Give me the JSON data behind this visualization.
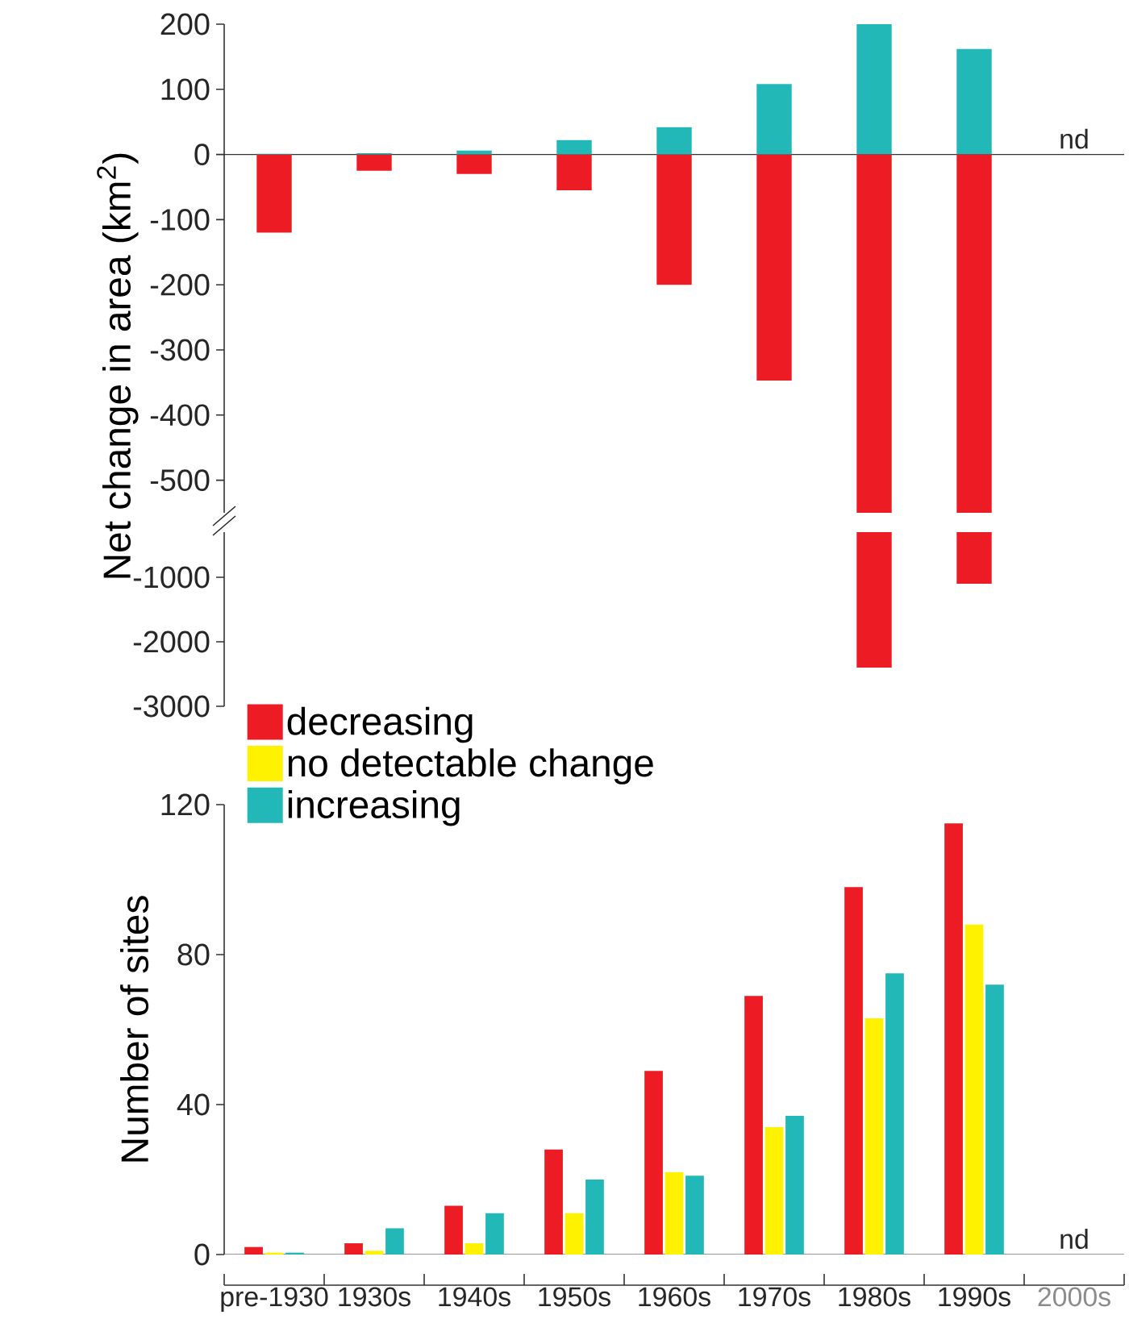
{
  "chart_data": [
    {
      "type": "bar",
      "ylabel": "Net change in area (km$^{2}$)",
      "categories": [
        null,
        null,
        null,
        null,
        null,
        null,
        null,
        null,
        null
      ],
      "tick_labels": "y",
      "stacked": true,
      "series": [
        {
          "color": "#ed1c24",
          "values": [
            -120,
            -25,
            -30,
            -55,
            -200,
            -347,
            null,
            null,
            null
          ]
        },
        {
          "color": "#22b8b8",
          "values": [
            1,
            2,
            6,
            22,
            42,
            108,
            200,
            162,
            null
          ]
        }
      ],
      "ylim": [
        -550,
        200
      ],
      "yticks": [
        -500,
        -400,
        -300,
        -200,
        -100,
        0,
        100,
        200
      ],
      "annotations": [
        "nd"
      ]
    },
    {
      "type": "bar",
      "categories": [
        null,
        null,
        null,
        null,
        null,
        null,
        null,
        null,
        null
      ],
      "tick_labels": "y",
      "series": [
        {
          "color": "#ed1c24",
          "values": [
            null,
            null,
            null,
            null,
            null,
            null,
            -2400,
            -1100,
            null
          ]
        }
      ],
      "ylim": [
        -3000,
        -300
      ],
      "yticks": [
        -3000,
        -2000,
        -1000
      ]
    },
    {
      "type": "bar",
      "ylabel": "Number of sites",
      "categories": [
        "pre-1930",
        "1930s",
        "1940s",
        "1950s",
        "1960s",
        "1970s",
        "1980s",
        "1990s",
        "2000s"
      ],
      "series": [
        {
          "name": "decreasing",
          "color": "#ed1c24",
          "values": [
            2,
            3,
            13,
            28,
            49,
            69,
            98,
            115,
            null
          ]
        },
        {
          "name": "no detectable change",
          "color": "#fff200",
          "values": [
            0.5,
            1,
            3,
            11,
            22,
            34,
            63,
            88,
            null
          ]
        },
        {
          "name": "increasing",
          "color": "#22b8b8",
          "values": [
            0.5,
            7,
            11,
            20,
            21,
            37,
            75,
            72,
            null
          ]
        }
      ],
      "ylim": [
        0,
        120
      ],
      "yticks": [
        0,
        40,
        80,
        120
      ],
      "legend": "top left",
      "annotations": [
        "nd"
      ]
    }
  ]
}
